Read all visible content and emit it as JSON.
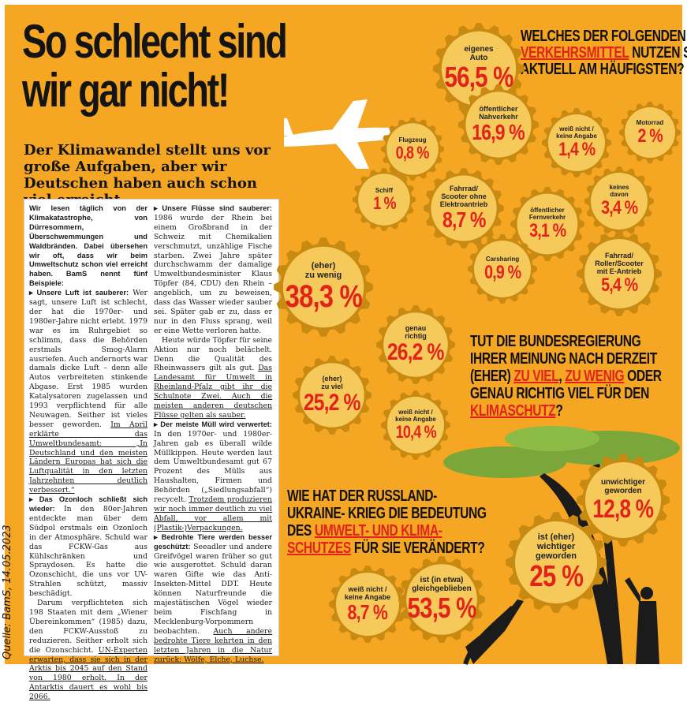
{
  "colors": {
    "background": "#f5a623",
    "accent_red": "#e2231a",
    "cog_fill": "#f6c95b",
    "cog_ring": "#c98a12",
    "tree": "#7aa63a",
    "sky": "#f5a623"
  },
  "headline": {
    "line1": "So schlecht sind",
    "line2": "wir gar nicht!"
  },
  "subhead": "Der Klimawandel stellt uns vor große Aufgaben, aber wir Deutschen haben auch schon viel erreicht",
  "source": "Quelle: BamS, 14.05.2023",
  "article": {
    "intro": "Wir lesen täglich von der Klimakatastrophe, von Dürresommern, Überschwemmungen und Waldbränden. Dabei übersehen wir oft, dass wir beim Umweltschutz schon viel erreicht haben. BamS nennt fünf Beispiele:",
    "p1_head": "▸ Unsere Luft ist sauberer:",
    "p1_text": " Wer sagt, unsere Luft ist schlecht, der hat die 1970er- und 1980er-Jahre nicht erlebt. 1979 war es im Ruhrgebiet so schlimm, dass die Behörden erstmals Smog-Alarm ausriefen. Auch andernorts war damals dicke Luft – denn alle Autos verbreiteten stinkende Abgase. Erst 1985 wurden Katalysatoren zugelassen und 1993 verpflichtend für alle Neuwagen. Seither ist vieles besser geworden. ",
    "p1_link": "Im April erklärte das Umweltbundesamt: „In Deutschland und den meisten Ländern Europas hat sich die Luftqualität in den letzten Jahrzehnten deutlich verbessert.“",
    "p2_head": "▸ Das Ozonloch schließt sich wieder:",
    "p2_text": " In den 80er-Jahren entdeckte man über dem Südpol erstmals ein Ozonloch in der Atmosphäre. Schuld war das FCKW-Gas aus Kühlschränken und Spraydosen. Es hatte die Ozonschicht, die uns vor UV-Strahlen schützt, massiv beschädigt.",
    "p2b_text": "Darum verpflichteten sich 198 Staaten mit dem „Wiener Übereinkommen“ (1985) dazu, den FCKW-Ausstoß zu reduzieren. Seither erholt sich die Ozonschicht. ",
    "p2_link": "UN-Experten erwarten, dass sie sich in der Arktis bis 2045 auf den Stand von 1980 erholt. In der Antarktis dauert es wohl bis 2066.",
    "p3_head": "▸ Unsere Flüsse sind sauberer:",
    "p3_text": " 1986 wurde der Rhein bei einem Großbrand in der Schweiz mit Chemikalien verschmutzt, unzählige Fische starben. Zwei Jahre später durchschwamm der damalige Umweltbundesminister Klaus Töpfer (84, CDU) den Rhein – angeblich, um zu beweisen, dass das Wasser wieder sauber sei. Später gab er zu, dass er nur in den Fluss sprang, weil er eine Wette verloren hatte.",
    "p3b_text": "Heute würde Töpfer für seine Aktion nur noch belächelt. Denn die Qualität des Rheinwassers gilt als gut. ",
    "p3_link": "Das Landesamt für Umwelt in Rheinland-Pfalz gibt ihr die Schulnote Zwei. Auch die meisten anderen deutschen Flüsse gelten als sauber.",
    "p4_head": "▸ Der meiste Müll wird verwertet:",
    "p4_text": " In den 1970er- und 1980er-Jahren gab es überall wilde Müllkippen. Heute werden laut dem Umweltbundesamt gut 67 Prozent des Mülls aus Haushalten, Firmen und Behörden („Siedlungsabfall“) recycelt. ",
    "p4_link": "Trotzdem produzieren wir noch immer deutlich zu viel Abfall, vor allem mit (Plastik-)Verpackungen.",
    "p5_head": "▸ Bedrohte Tiere werden besser geschützt:",
    "p5_text": " Seeadler und andere Greifvögel waren früher so gut wie ausgerottet. Schuld daran waren Gifte wie das Anti-Insekten-Mittel DDT. Heute können Naturfreunde die majestätischen Vögel wieder beim Fischfang in Mecklenburg-Vorpommern beobachten. ",
    "p5_link": "Auch andere bedrohte Tiere kehrten in den letzten Jahren in die Natur zurück: Wölfe, Elche, Luchse."
  },
  "q1": {
    "line1": "WELCHES DER FOLGENDEN",
    "line2a": "VERKEHRSMITTEL",
    "line2b": " NUTZEN SIE",
    "line3": "AKTUELL AM HÄUFIGSTEN?"
  },
  "q2": {
    "line1": "TUT DIE BUNDESREGIERUNG",
    "line2": "IHRER MEINUNG NACH DERZEIT",
    "line3a": "(EHER) ",
    "line3b": "ZU VIEL",
    "line3c": ", ",
    "line3d": "ZU WENIG",
    "line3e": " ODER",
    "line4": "GENAU RICHTIG VIEL FÜR DEN",
    "line5": "KLIMASCHUTZ",
    "line5b": "?"
  },
  "q3": {
    "line1": "WIE HAT DER RUSSLAND-",
    "line2": "UKRAINE- KRIEG DIE BEDEUTUNG",
    "line3a": "DES ",
    "line3b": "UMWELT- UND KLIMA-",
    "line4a": "SCHUTZES",
    "line4b": " FÜR SIE VERÄNDERT?"
  },
  "cogs": [
    {
      "label": "eigenes\nAuto",
      "value": "56,5 %"
    },
    {
      "label": "Flugzeug",
      "value": "0,8 %"
    },
    {
      "label": "öffentlicher\nNahverkehr",
      "value": "16,9 %"
    },
    {
      "label": "weiß nicht /\nkeine Angabe",
      "value": "1,4 %"
    },
    {
      "label": "Motorrad",
      "value": "2 %"
    },
    {
      "label": "Schiff",
      "value": "1 %"
    },
    {
      "label": "Fahrrad/\nScooter ohne\nElektroantrieb",
      "value": "8,7 %"
    },
    {
      "label": "öffentlicher\nFernverkehr",
      "value": "3,1 %"
    },
    {
      "label": "keines\ndavon",
      "value": "3,4 %"
    },
    {
      "label": "Carsharing",
      "value": "0,9 %"
    },
    {
      "label": "Fahrrad/\nRoller/Scooter\nmit E-Antrieb",
      "value": "5,4 %"
    },
    {
      "label": "(eher)\nzu wenig",
      "value": "38,3 %"
    },
    {
      "label": "genau\nrichtig",
      "value": "26,2 %"
    },
    {
      "label": "(eher)\nzu viel",
      "value": "25,2 %"
    },
    {
      "label": "weiß nicht /\nkeine Angabe",
      "value": "10,4 %"
    },
    {
      "label": "unwichtiger\ngeworden",
      "value": "12,8 %"
    },
    {
      "label": "ist (eher)\nwichtiger\ngeworden",
      "value": "25 %"
    },
    {
      "label": "weiß nicht /\nkeine Angabe",
      "value": "8,7 %"
    },
    {
      "label": "ist (in etwa)\ngleichgeblieben",
      "value": "53,5 %"
    }
  ]
}
